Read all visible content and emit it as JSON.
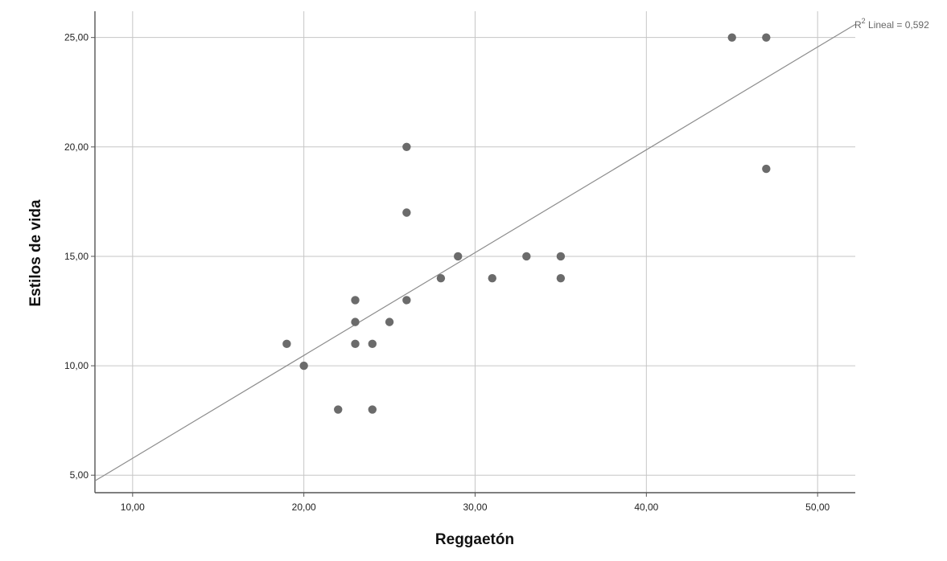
{
  "chart_data": {
    "type": "scatter",
    "title": "",
    "xlabel": "Reggaetón",
    "ylabel": "Estilos de vida",
    "xlim": [
      7.8,
      52.2
    ],
    "ylim": [
      4.2,
      26.2
    ],
    "x_ticks": [
      10,
      20,
      30,
      40,
      50
    ],
    "y_ticks": [
      5,
      10,
      15,
      20,
      25
    ],
    "x_tick_labels": [
      "10,00",
      "20,00",
      "30,00",
      "40,00",
      "50,00"
    ],
    "y_tick_labels": [
      "5,00",
      "10,00",
      "15,00",
      "20,00",
      "25,00"
    ],
    "grid": true,
    "legend": "none",
    "colors": {
      "marker": "#6b6b6b",
      "fit_line": "#8c8c8c",
      "grid": "#c6c6c6",
      "axis": "#555555",
      "fit_label": "#666666"
    },
    "points": [
      {
        "x": 19,
        "y": 11
      },
      {
        "x": 20,
        "y": 10
      },
      {
        "x": 22,
        "y": 8
      },
      {
        "x": 23,
        "y": 13
      },
      {
        "x": 23,
        "y": 12
      },
      {
        "x": 23,
        "y": 11
      },
      {
        "x": 24,
        "y": 11
      },
      {
        "x": 24,
        "y": 8
      },
      {
        "x": 25,
        "y": 12
      },
      {
        "x": 26,
        "y": 20
      },
      {
        "x": 26,
        "y": 17
      },
      {
        "x": 26,
        "y": 13
      },
      {
        "x": 28,
        "y": 14
      },
      {
        "x": 29,
        "y": 15
      },
      {
        "x": 31,
        "y": 14
      },
      {
        "x": 33,
        "y": 15
      },
      {
        "x": 35,
        "y": 15
      },
      {
        "x": 35,
        "y": 14
      },
      {
        "x": 45,
        "y": 25
      },
      {
        "x": 47,
        "y": 25
      },
      {
        "x": 47,
        "y": 19
      }
    ],
    "fit_line": {
      "label_prefix": "R",
      "label_sup": "2",
      "label_suffix": " Lineal = 0,592",
      "x": [
        7.8,
        52.2
      ],
      "y": [
        4.74,
        25.6
      ]
    }
  }
}
